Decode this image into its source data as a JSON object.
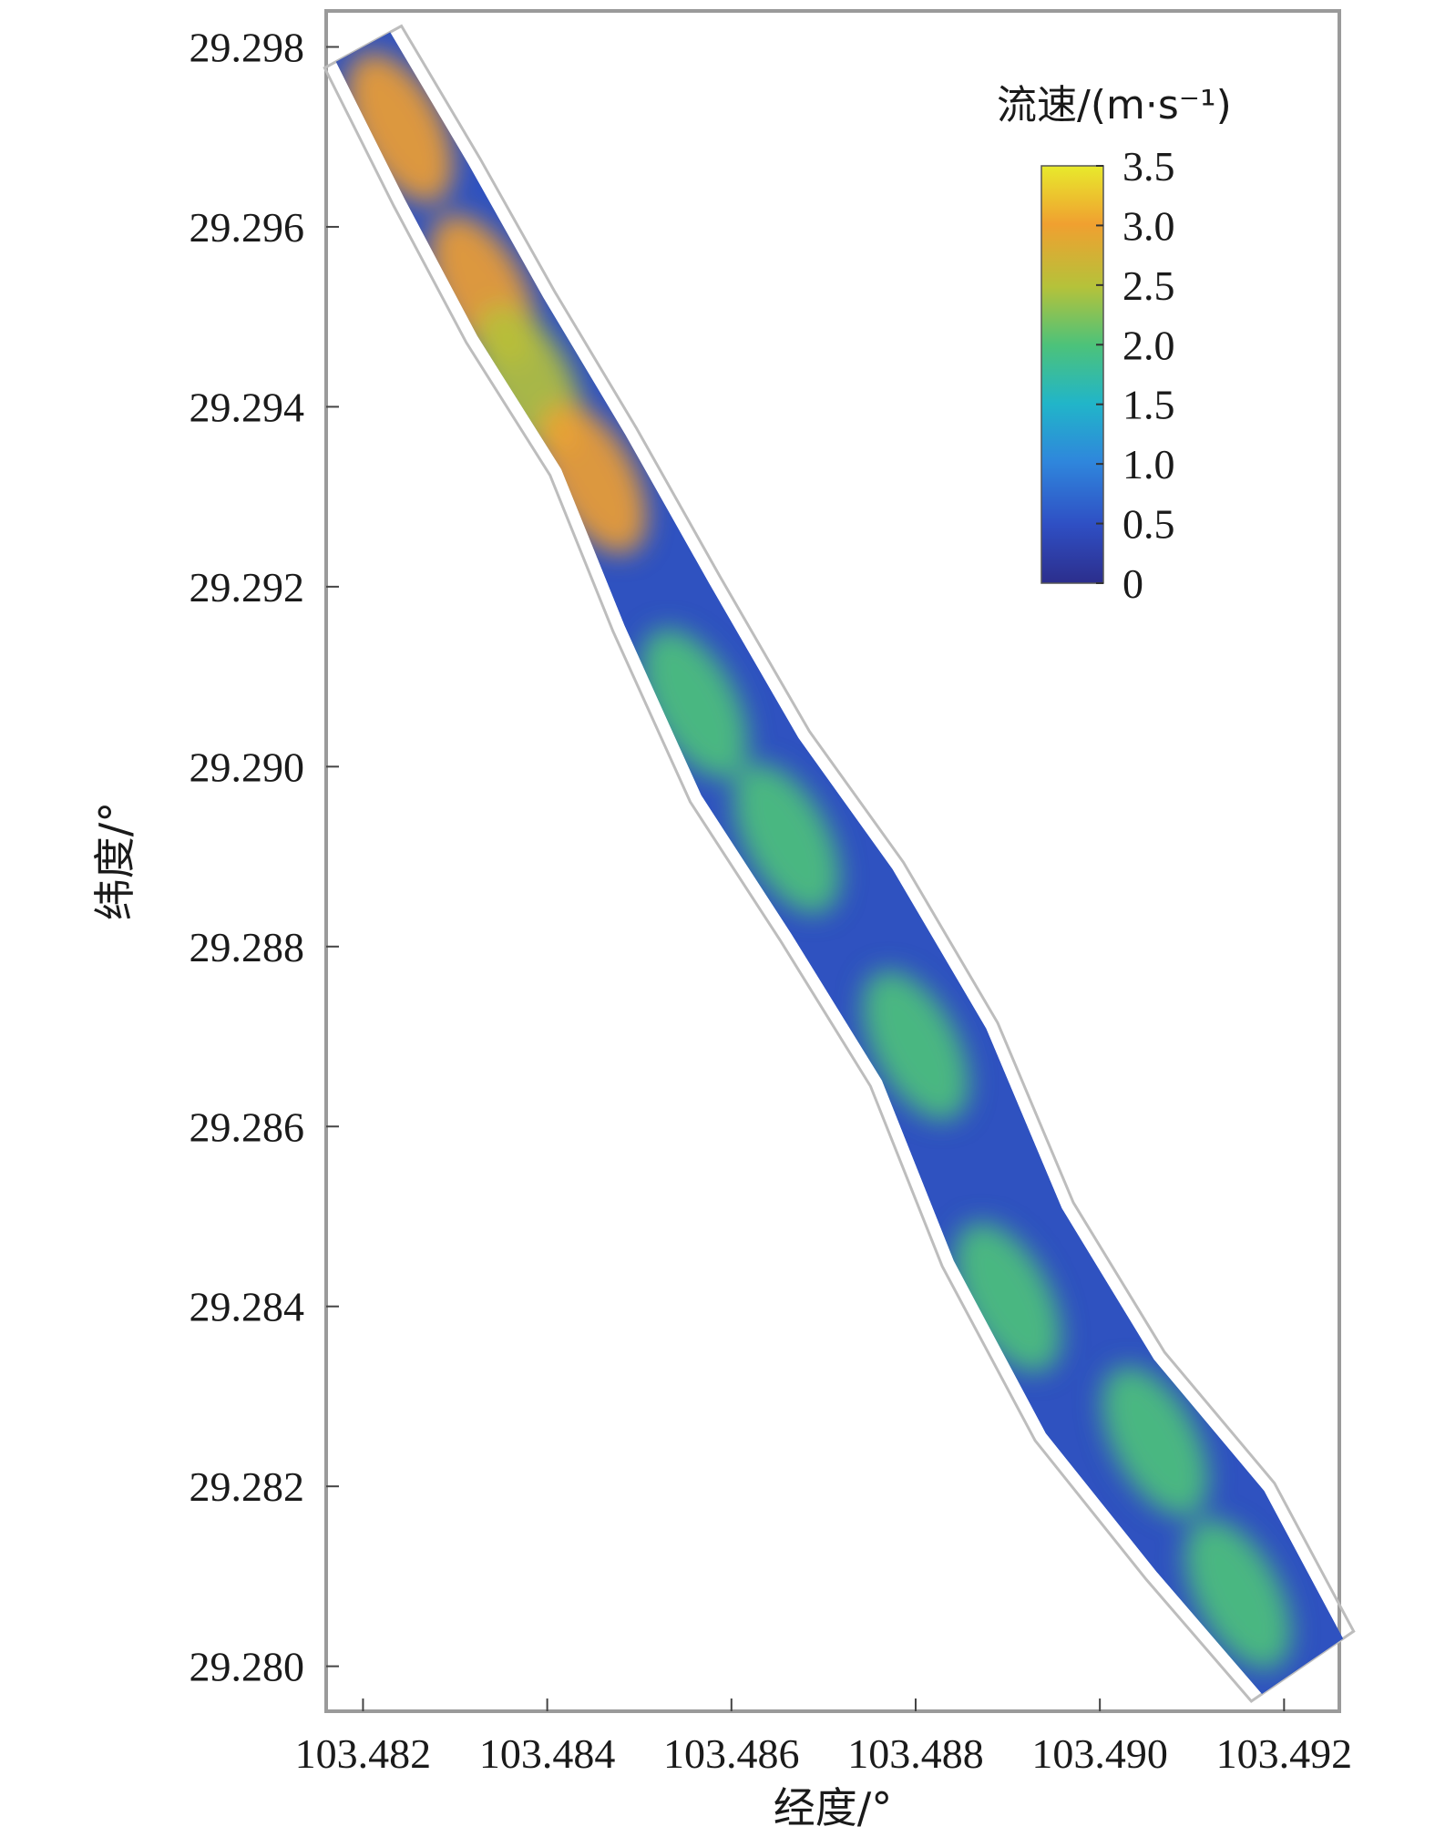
{
  "chart_data": {
    "type": "heatmap",
    "title": "",
    "xlabel": "经度/°",
    "ylabel": "纬度/°",
    "xlim": [
      103.4816,
      103.4926
    ],
    "ylim": [
      29.2795,
      29.2984
    ],
    "x_ticks": [
      "103.482",
      "103.484",
      "103.486",
      "103.488",
      "103.490",
      "103.492"
    ],
    "x_tick_values": [
      103.482,
      103.484,
      103.486,
      103.488,
      103.49,
      103.492
    ],
    "y_ticks": [
      "29.280",
      "29.282",
      "29.284",
      "29.286",
      "29.288",
      "29.290",
      "29.292",
      "29.294",
      "29.296",
      "29.298"
    ],
    "y_tick_values": [
      29.28,
      29.282,
      29.284,
      29.286,
      29.288,
      29.29,
      29.292,
      29.294,
      29.296,
      29.298
    ],
    "colorbar": {
      "title": "流速/(m·s⁻¹)",
      "ticks": [
        "0",
        "0.5",
        "1.0",
        "1.5",
        "2.0",
        "2.5",
        "3.0",
        "3.5"
      ],
      "tick_values": [
        0,
        0.5,
        1.0,
        1.5,
        2.0,
        2.5,
        3.0,
        3.5
      ],
      "range": [
        0,
        3.5
      ],
      "colors": [
        "#2c2e8c",
        "#2f4fc4",
        "#2f86dc",
        "#21b5c9",
        "#4cc27a",
        "#b5c23a",
        "#f0a030",
        "#e8ea2c"
      ]
    },
    "grid": false,
    "river_centerline": [
      {
        "x": 103.482,
        "y": 29.298
      },
      {
        "x": 103.4828,
        "y": 29.2965
      },
      {
        "x": 103.4836,
        "y": 29.295
      },
      {
        "x": 103.4845,
        "y": 29.2935
      },
      {
        "x": 103.4853,
        "y": 29.2918
      },
      {
        "x": 103.4862,
        "y": 29.29
      },
      {
        "x": 103.4872,
        "y": 29.2885
      },
      {
        "x": 103.4882,
        "y": 29.2868
      },
      {
        "x": 103.489,
        "y": 29.2848
      },
      {
        "x": 103.49,
        "y": 29.283
      },
      {
        "x": 103.4912,
        "y": 29.2815
      },
      {
        "x": 103.4922,
        "y": 29.28
      }
    ],
    "velocity_hotspots": [
      {
        "x": 103.4824,
        "y": 29.2971,
        "value": 3.0
      },
      {
        "x": 103.4833,
        "y": 29.2953,
        "value": 2.8
      },
      {
        "x": 103.4838,
        "y": 29.2943,
        "value": 2.6
      },
      {
        "x": 103.4845,
        "y": 29.2932,
        "value": 3.0
      },
      {
        "x": 103.4856,
        "y": 29.2907,
        "value": 2.2
      },
      {
        "x": 103.4866,
        "y": 29.2892,
        "value": 1.9
      },
      {
        "x": 103.488,
        "y": 29.2869,
        "value": 2.0
      },
      {
        "x": 103.489,
        "y": 29.2841,
        "value": 2.2
      },
      {
        "x": 103.4906,
        "y": 29.2825,
        "value": 1.8
      },
      {
        "x": 103.4915,
        "y": 29.2808,
        "value": 2.1
      }
    ]
  }
}
